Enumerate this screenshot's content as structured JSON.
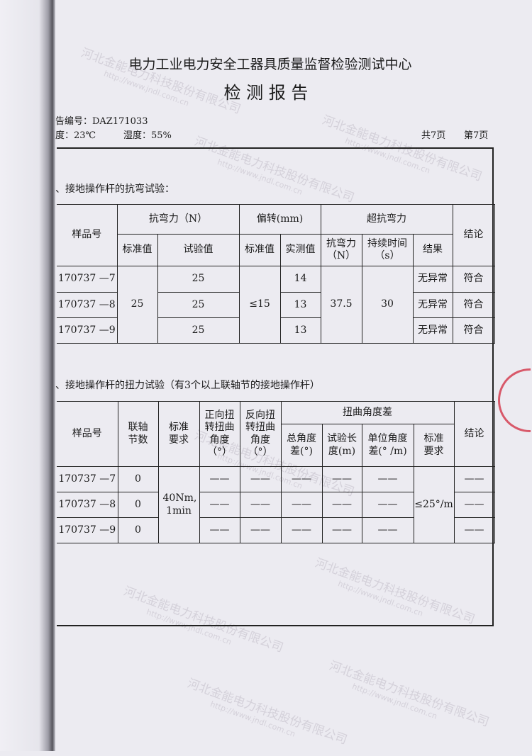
{
  "header": {
    "org": "电力工业电力安全工器具质量监督检验测试中心",
    "title": "检 测 报 告",
    "report_no": "告编号：DAZ171033",
    "temperature": "度：23℃",
    "humidity": "湿度：55%",
    "total_pages": "共7页",
    "page": "第7页"
  },
  "section1": {
    "title": "、接地操作杆的抗弯试验：",
    "headers": {
      "sample": "样品号",
      "bend": "抗弯力（N）",
      "bend_std": "标准值",
      "bend_test": "试验值",
      "deflect": "偏转(mm)",
      "deflect_std": "标准值",
      "deflect_meas": "实测值",
      "over": "超抗弯力",
      "over_force": "抗弯力（N）",
      "over_time": "持续时间（s）",
      "over_result": "结果",
      "conclusion": "结论"
    },
    "bend_std": "25",
    "deflect_std": "≤15",
    "over_force": "37.5",
    "over_time": "30",
    "rows": [
      {
        "sample": "170737 —7",
        "bend_test": "25",
        "deflect": "14",
        "result": "无异常",
        "conclusion": "符合"
      },
      {
        "sample": "170737 —8",
        "bend_test": "25",
        "deflect": "13",
        "result": "无异常",
        "conclusion": "符合"
      },
      {
        "sample": "170737 —9",
        "bend_test": "25",
        "deflect": "13",
        "result": "无异常",
        "conclusion": "符合"
      }
    ]
  },
  "section2": {
    "title": "、接地操作杆的扭力试验（有3个以上联轴节的接地操作杆）",
    "headers": {
      "sample": "样品号",
      "joints": "联轴节数",
      "req": "标准要求",
      "fwd": "正向扭转扭曲角度（°）",
      "rev": "反向扭转扭曲角度（°）",
      "diff": "扭曲角度差",
      "total": "总角度差(°)",
      "length": "试验长度(m)",
      "unit": "单位角度差(° /m)",
      "diff_req": "标准要求",
      "conclusion": "结论"
    },
    "req": "40Nm, 1min",
    "diff_req": "≤25°/m",
    "dash": "——",
    "rows": [
      {
        "sample": "170737 —7",
        "joints": "0"
      },
      {
        "sample": "170737 —8",
        "joints": "0"
      },
      {
        "sample": "170737 —9",
        "joints": "0"
      }
    ]
  },
  "watermark": {
    "company": "河北金能电力科技股份有限公司",
    "url": "http://www.jndl.com.cn"
  },
  "colors": {
    "paper": "#ecebf1",
    "stamp": "#d2283c"
  }
}
